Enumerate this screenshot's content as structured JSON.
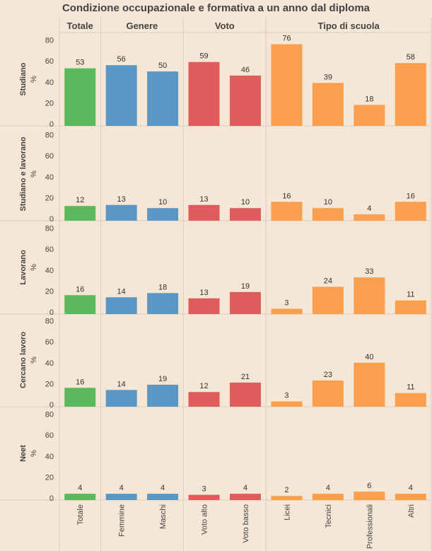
{
  "chart_data": {
    "type": "bar",
    "title": "Condizione occupazionale e formativa a un anno dal diploma",
    "ylabel": "%",
    "ylim": [
      0,
      85
    ],
    "yticks": [
      0,
      20,
      40,
      60,
      80
    ],
    "groups": [
      {
        "name": "Totale",
        "color": "#5cb85c",
        "categories": [
          "Totale"
        ]
      },
      {
        "name": "Genere",
        "color": "#5b97c4",
        "categories": [
          "Femmine",
          "Maschi"
        ]
      },
      {
        "name": "Voto",
        "color": "#e05c5c",
        "categories": [
          "Voto alto",
          "Voto basso"
        ]
      },
      {
        "name": "Tipo di scuola",
        "color": "#f99f4e",
        "categories": [
          "Licei",
          "Tecnici",
          "Professionali",
          "Altri"
        ]
      }
    ],
    "categories": [
      "Totale",
      "Femmine",
      "Maschi",
      "Voto alto",
      "Voto basso",
      "Licei",
      "Tecnici",
      "Professionali",
      "Altri"
    ],
    "series": [
      {
        "name": "Studiano",
        "values": [
          53,
          56,
          50,
          59,
          46,
          76,
          39,
          18,
          58
        ]
      },
      {
        "name": "Studiano e lavorano",
        "values": [
          12,
          13,
          10,
          13,
          10,
          16,
          10,
          4,
          16
        ]
      },
      {
        "name": "Lavorano",
        "values": [
          16,
          14,
          18,
          13,
          19,
          3,
          24,
          33,
          11
        ]
      },
      {
        "name": "Cercano lavoro",
        "values": [
          16,
          14,
          19,
          12,
          21,
          3,
          23,
          40,
          11
        ]
      },
      {
        "name": "Neet",
        "values": [
          4,
          4,
          4,
          3,
          4,
          2,
          4,
          6,
          4
        ]
      }
    ]
  }
}
